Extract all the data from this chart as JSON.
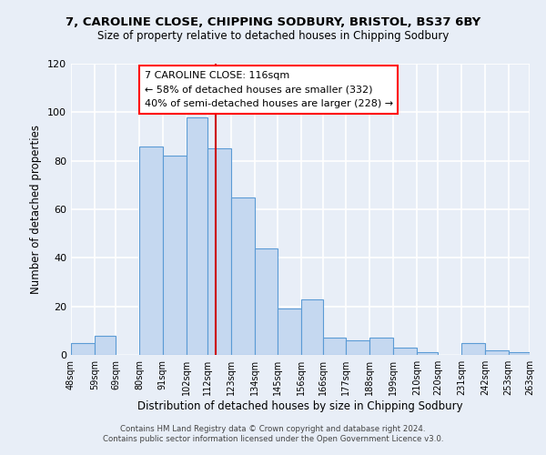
{
  "title1": "7, CAROLINE CLOSE, CHIPPING SODBURY, BRISTOL, BS37 6BY",
  "title2": "Size of property relative to detached houses in Chipping Sodbury",
  "xlabel": "Distribution of detached houses by size in Chipping Sodbury",
  "ylabel": "Number of detached properties",
  "footer1": "Contains HM Land Registry data © Crown copyright and database right 2024.",
  "footer2": "Contains public sector information licensed under the Open Government Licence v3.0.",
  "annotation_line1": "7 CAROLINE CLOSE: 116sqm",
  "annotation_line2": "← 58% of detached houses are smaller (332)",
  "annotation_line3": "40% of semi-detached houses are larger (228) →",
  "bar_color": "#c5d8f0",
  "bar_edge_color": "#5b9bd5",
  "vline_color": "#cc0000",
  "vline_x": 116,
  "bin_edges": [
    48,
    59,
    69,
    80,
    91,
    102,
    112,
    123,
    134,
    145,
    156,
    166,
    177,
    188,
    199,
    210,
    220,
    231,
    242,
    253,
    263
  ],
  "bar_heights": [
    5,
    8,
    0,
    86,
    82,
    98,
    85,
    65,
    44,
    19,
    23,
    7,
    6,
    7,
    3,
    1,
    0,
    5,
    2,
    1
  ],
  "xlim_left": 48,
  "xlim_right": 263,
  "ylim": [
    0,
    120
  ],
  "yticks": [
    0,
    20,
    40,
    60,
    80,
    100,
    120
  ],
  "background_color": "#e8eef7",
  "plot_bg_color": "#e8eef7",
  "grid_color": "#ffffff",
  "tick_labels": [
    "48sqm",
    "59sqm",
    "69sqm",
    "80sqm",
    "91sqm",
    "102sqm",
    "112sqm",
    "123sqm",
    "134sqm",
    "145sqm",
    "156sqm",
    "166sqm",
    "177sqm",
    "188sqm",
    "199sqm",
    "210sqm",
    "220sqm",
    "231sqm",
    "242sqm",
    "253sqm",
    "263sqm"
  ]
}
